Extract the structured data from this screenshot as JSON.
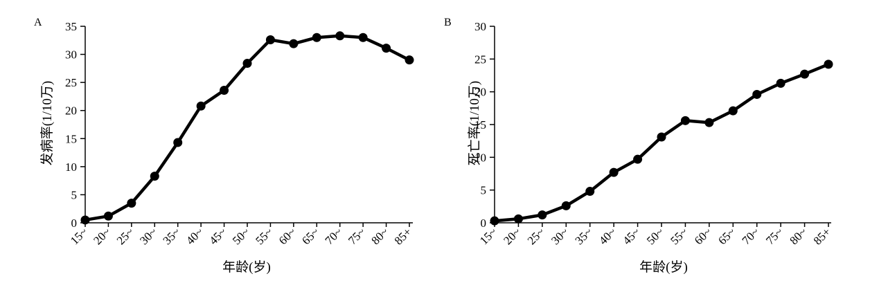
{
  "chart_data": [
    {
      "type": "line",
      "panel_label": "A",
      "ylabel": "发病率(1/10万)",
      "xlabel": "年龄(岁)",
      "categories": [
        "15~",
        "20~",
        "25~",
        "30~",
        "35~",
        "40~",
        "45~",
        "50~",
        "55~",
        "60~",
        "65~",
        "70~",
        "75~",
        "80~",
        "85+"
      ],
      "values": [
        0.5,
        1.2,
        3.5,
        8.3,
        14.3,
        20.8,
        23.6,
        28.4,
        32.6,
        31.9,
        33.0,
        33.3,
        33.0,
        31.1,
        29.0
      ],
      "ylim": [
        0,
        35
      ],
      "yticks": [
        0,
        5,
        10,
        15,
        20,
        25,
        30,
        35
      ],
      "grid": false,
      "line_color": "#000000"
    },
    {
      "type": "line",
      "panel_label": "B",
      "ylabel": "死亡率(1/10万)",
      "xlabel": "年龄(岁)",
      "categories": [
        "15~",
        "20~",
        "25~",
        "30~",
        "35~",
        "40~",
        "45~",
        "50~",
        "55~",
        "60~",
        "65~",
        "70~",
        "75~",
        "80~",
        "85+"
      ],
      "values": [
        0.3,
        0.6,
        1.2,
        2.6,
        4.8,
        7.7,
        9.7,
        13.1,
        15.6,
        15.3,
        17.1,
        19.6,
        21.3,
        22.7,
        24.2
      ],
      "ylim": [
        0,
        30
      ],
      "yticks": [
        0,
        5,
        10,
        15,
        20,
        25,
        30
      ],
      "grid": false,
      "line_color": "#000000"
    }
  ]
}
